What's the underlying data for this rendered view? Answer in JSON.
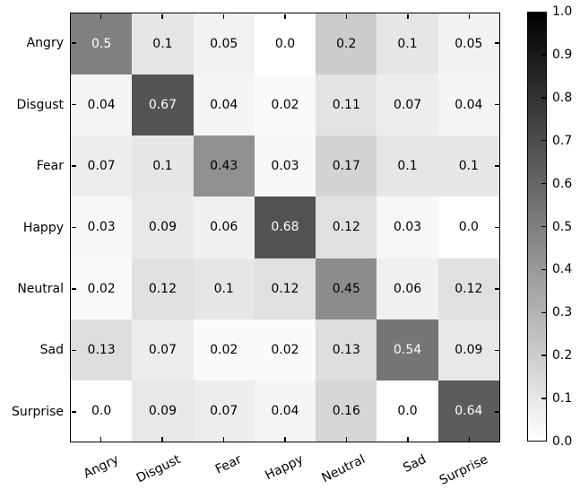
{
  "chart_data": {
    "type": "heatmap",
    "description": "confusion-matrix",
    "row_labels": [
      "Angry",
      "Disgust",
      "Fear",
      "Happy",
      "Neutral",
      "Sad",
      "Surprise"
    ],
    "col_labels": [
      "Angry",
      "Disgust",
      "Fear",
      "Happy",
      "Neutral",
      "Sad",
      "Surprise"
    ],
    "matrix": [
      [
        0.5,
        0.1,
        0.05,
        0.0,
        0.2,
        0.1,
        0.05
      ],
      [
        0.04,
        0.67,
        0.04,
        0.02,
        0.11,
        0.07,
        0.04
      ],
      [
        0.07,
        0.1,
        0.43,
        0.03,
        0.17,
        0.1,
        0.1
      ],
      [
        0.03,
        0.09,
        0.06,
        0.68,
        0.12,
        0.03,
        0.0
      ],
      [
        0.02,
        0.12,
        0.1,
        0.12,
        0.45,
        0.06,
        0.12
      ],
      [
        0.13,
        0.07,
        0.02,
        0.02,
        0.13,
        0.54,
        0.09
      ],
      [
        0.0,
        0.09,
        0.07,
        0.04,
        0.16,
        0.0,
        0.64
      ]
    ],
    "value_range": [
      0.0,
      1.0
    ],
    "colormap": {
      "low_color": "#ffffff",
      "high_color": "#000000"
    },
    "cell_text_colors": {
      "on_dark": "#ffffff",
      "on_light": "#000000"
    },
    "colorbar": {
      "min": 0.0,
      "max": 1.0,
      "ticks": [
        "1.0",
        "0.9",
        "0.8",
        "0.7",
        "0.6",
        "0.5",
        "0.4",
        "0.3",
        "0.2",
        "0.1",
        "0.0"
      ]
    },
    "grid": false,
    "title": "",
    "xlabel": "",
    "ylabel": ""
  }
}
